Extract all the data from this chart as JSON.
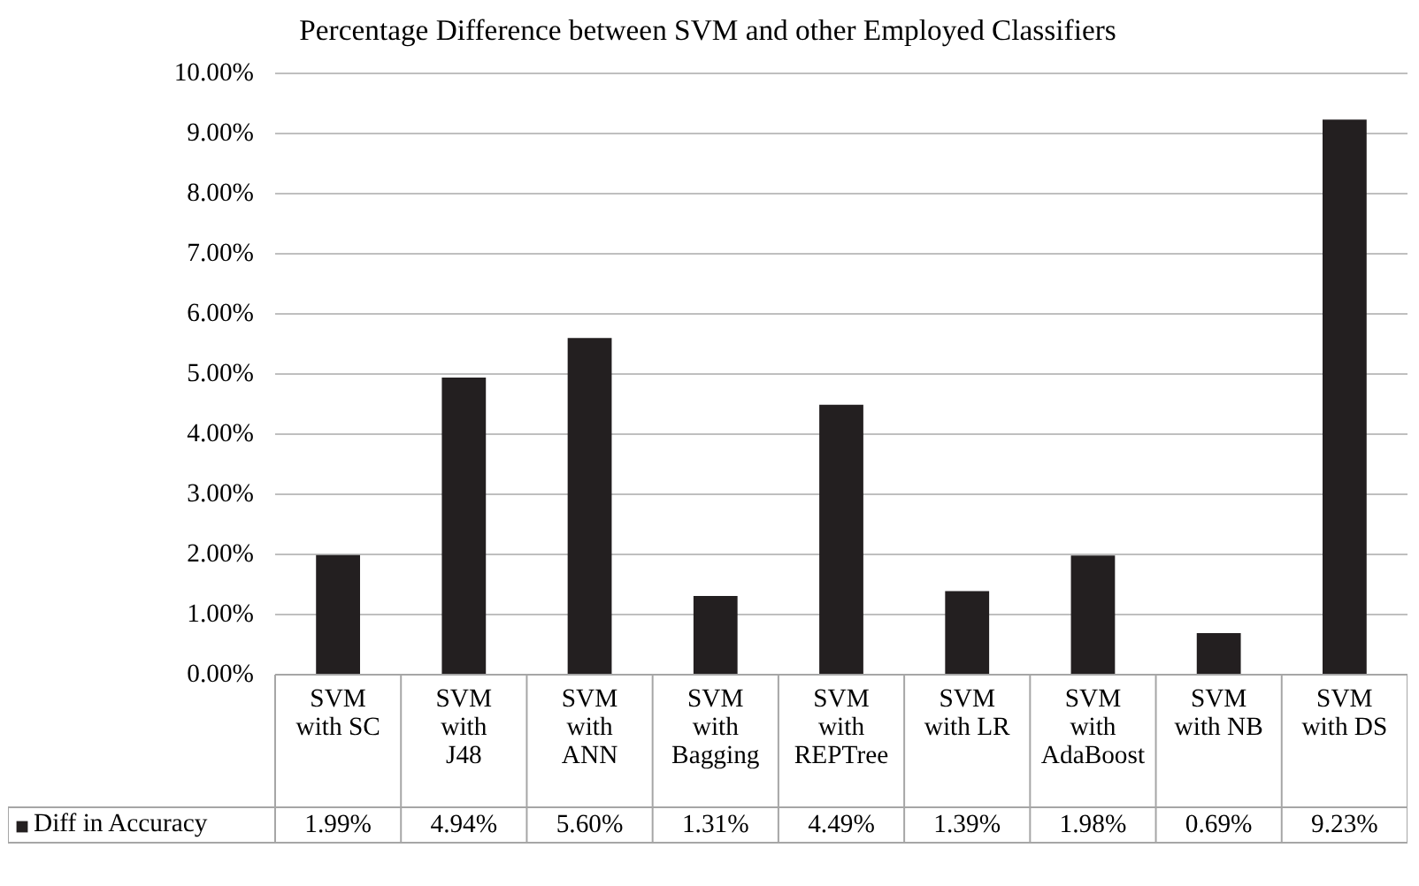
{
  "chart_data": {
    "type": "bar",
    "title": "Percentage Difference between SVM and other Employed Classifiers",
    "categories": [
      "SVM with SC",
      "SVM with J48",
      "SVM with ANN",
      "SVM with Bagging",
      "SVM with REPTree",
      "SVM with LR",
      "SVM with AdaBoost",
      "SVM with NB",
      "SVM with DS"
    ],
    "series": [
      {
        "name": "Diff in Accuracy",
        "color": "#231f20",
        "values": [
          1.99,
          4.94,
          5.6,
          1.31,
          4.49,
          1.39,
          1.98,
          0.69,
          9.23
        ],
        "value_labels": [
          "1.99%",
          "4.94%",
          "5.60%",
          "1.31%",
          "4.49%",
          "1.39%",
          "1.98%",
          "0.69%",
          "9.23%"
        ]
      }
    ],
    "ylim": [
      0,
      10
    ],
    "yticks": [
      {
        "value": 0,
        "label": "0.00%"
      },
      {
        "value": 1,
        "label": "1.00%"
      },
      {
        "value": 2,
        "label": "2.00%"
      },
      {
        "value": 3,
        "label": "3.00%"
      },
      {
        "value": 4,
        "label": "4.00%"
      },
      {
        "value": 5,
        "label": "5.00%"
      },
      {
        "value": 6,
        "label": "6.00%"
      },
      {
        "value": 7,
        "label": "7.00%"
      },
      {
        "value": 8,
        "label": "8.00%"
      },
      {
        "value": 9,
        "label": "9.00%"
      },
      {
        "value": 10,
        "label": "10.00%"
      }
    ],
    "grid": "y",
    "legend": "bottom left"
  }
}
